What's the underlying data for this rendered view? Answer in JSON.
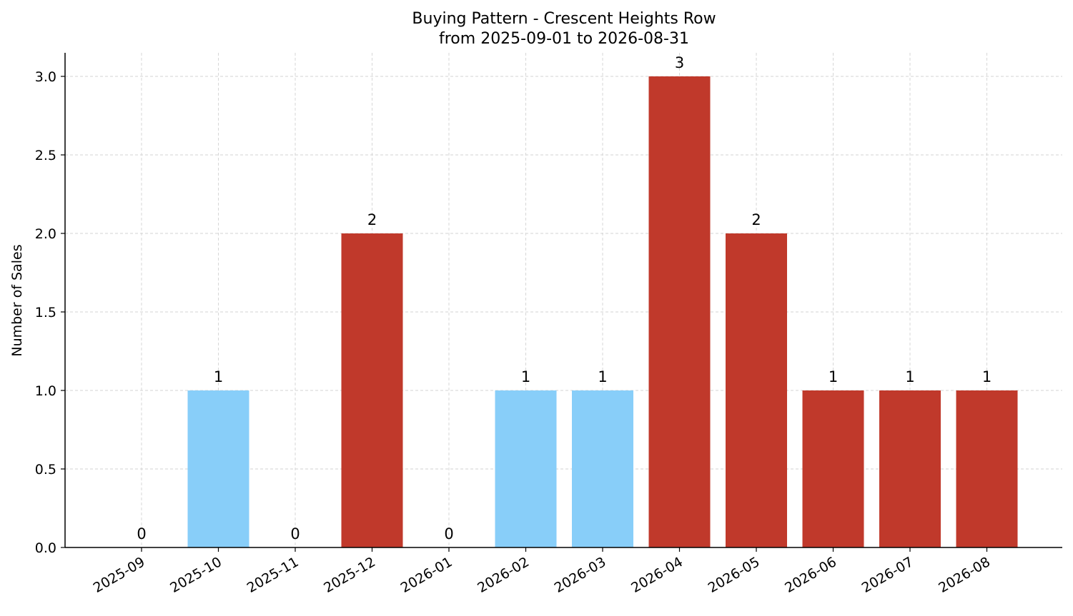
{
  "chart_data": {
    "type": "bar",
    "title": "Buying Pattern - Crescent Heights Row",
    "subtitle": "from 2025-09-01 to 2026-08-31",
    "xlabel": "",
    "ylabel": "Number of Sales",
    "categories": [
      "2025-09",
      "2025-10",
      "2025-11",
      "2025-12",
      "2026-01",
      "2026-02",
      "2026-03",
      "2026-04",
      "2026-05",
      "2026-06",
      "2026-07",
      "2026-08"
    ],
    "values": [
      0,
      1,
      0,
      2,
      0,
      1,
      1,
      3,
      2,
      1,
      1,
      1
    ],
    "bar_colors": [
      "#88CEF9",
      "#88CEF9",
      "#88CEF9",
      "#C0392B",
      "#88CEF9",
      "#88CEF9",
      "#88CEF9",
      "#C0392B",
      "#C0392B",
      "#C0392B",
      "#C0392B",
      "#C0392B"
    ],
    "data_labels": [
      "0",
      "1",
      "0",
      "2",
      "0",
      "1",
      "1",
      "3",
      "2",
      "1",
      "1",
      "1"
    ],
    "yticks": [
      "0.0",
      "0.5",
      "1.0",
      "1.5",
      "2.0",
      "2.5",
      "3.0"
    ],
    "ylim": [
      0,
      3.15
    ],
    "grid": true,
    "legend": false
  }
}
